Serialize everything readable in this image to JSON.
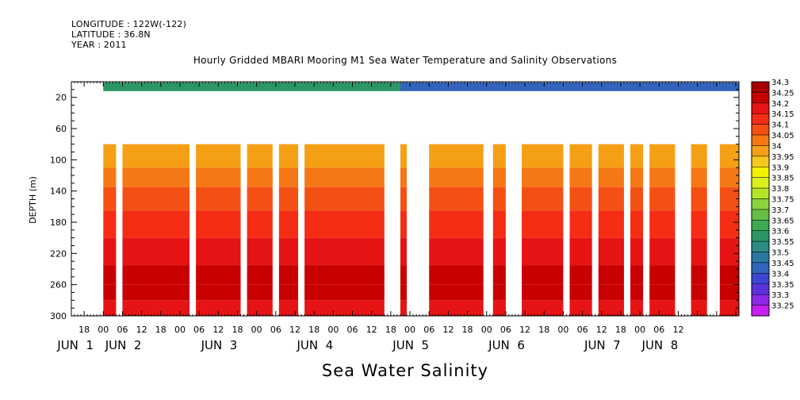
{
  "meta": {
    "longitude": "LONGITUDE : 122W(-122)",
    "latitude": "LATITUDE : 36.8N",
    "year": "YEAR : 2011"
  },
  "chart_data": {
    "type": "heatmap",
    "title": "Hourly Gridded MBARI Mooring M1 Sea Water Temperature and Salinity Observations",
    "xlabel": "Sea Water Salinity",
    "ylabel": "DEPTH (m)",
    "y_axis": {
      "range": [
        300,
        0
      ],
      "inverted": true,
      "ticks": [
        20,
        60,
        100,
        140,
        180,
        220,
        260,
        300
      ],
      "tick_labels": [
        "20",
        "60",
        "100",
        "140",
        "180",
        "220",
        "260",
        "300"
      ]
    },
    "x_axis": {
      "range_hours": [
        -10,
        199
      ],
      "hour_tick_labels": [
        "18",
        "00",
        "06",
        "12",
        "18",
        "00",
        "06",
        "12",
        "18",
        "00",
        "06",
        "12",
        "18",
        "00",
        "06",
        "12",
        "18",
        "00",
        "06",
        "12",
        "18",
        "00",
        "06",
        "12",
        "18",
        "00",
        "06",
        "12",
        "18",
        "00",
        "06",
        "12"
      ],
      "hour_ticks": [
        -6,
        0,
        6,
        12,
        18,
        24,
        30,
        36,
        42,
        48,
        54,
        60,
        66,
        72,
        78,
        84,
        90,
        96,
        102,
        108,
        114,
        120,
        126,
        132,
        138,
        144,
        150,
        156,
        162,
        168,
        174,
        180
      ],
      "day_labels": [
        "JUN  1",
        "JUN  2",
        "JUN  3",
        "JUN  4",
        "JUN  5",
        "JUN  6",
        "JUN  7",
        "JUN  8"
      ],
      "day_positions": [
        0,
        15,
        45,
        75,
        105,
        135,
        165,
        183
      ]
    },
    "colorbar": {
      "levels": [
        "34.3",
        "34.25",
        "34.2",
        "34.15",
        "34.1",
        "34.05",
        "34",
        "33.95",
        "33.9",
        "33.85",
        "33.8",
        "33.75",
        "33.7",
        "33.65",
        "33.6",
        "33.55",
        "33.5",
        "33.45",
        "33.4",
        "33.35",
        "33.3",
        "33.25"
      ],
      "colors": [
        "#a80000",
        "#c80000",
        "#e61414",
        "#f52d14",
        "#f55014",
        "#f57814",
        "#f5a014",
        "#f5c81e",
        "#f5f000",
        "#dcf01e",
        "#b4e628",
        "#8cd23c",
        "#64be46",
        "#3caa50",
        "#2a9664",
        "#2a8c82",
        "#2a78a0",
        "#3264be",
        "#3c46d2",
        "#5a32dc",
        "#8c28e6",
        "#c81ef0"
      ]
    },
    "data_gaps_hours": [
      [
        4,
        6
      ],
      [
        27,
        29
      ],
      [
        43,
        45
      ],
      [
        53,
        55
      ],
      [
        61,
        63
      ],
      [
        88,
        93
      ],
      [
        95,
        102
      ],
      [
        119,
        122
      ],
      [
        126,
        129
      ],
      [
        129,
        131
      ],
      [
        144,
        146
      ],
      [
        153,
        155
      ],
      [
        163,
        165
      ],
      [
        169,
        171
      ],
      [
        179,
        181
      ],
      [
        181,
        184
      ],
      [
        189,
        193
      ],
      [
        218,
        222
      ],
      [
        239,
        243
      ],
      [
        253,
        256
      ],
      [
        297,
        301
      ]
    ],
    "missing_depth_band_m": [
      12,
      80
    ],
    "series": [
      {
        "depth_m": 5,
        "description": "surface",
        "values_by_period": [
          {
            "hours": [
              0,
              93
            ],
            "value": 33.6
          },
          {
            "hours": [
              93,
              199
            ],
            "value": 33.45
          }
        ]
      },
      {
        "depth_m": 90,
        "value": 33.98
      },
      {
        "depth_m": 100,
        "value": 34.02
      },
      {
        "depth_m": 120,
        "value": 34.06
      },
      {
        "depth_m": 150,
        "value": 34.12
      },
      {
        "depth_m": 180,
        "value": 34.13
      },
      {
        "depth_m": 220,
        "value": 34.18
      },
      {
        "depth_m": 250,
        "value": 34.25
      },
      {
        "depth_m": 270,
        "value": 34.27
      },
      {
        "depth_m": 290,
        "value": 34.21
      }
    ]
  }
}
